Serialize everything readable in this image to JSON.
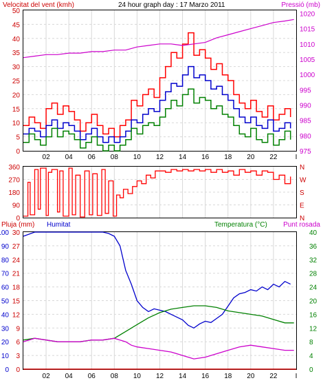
{
  "chart_data": [
    {
      "type": "line",
      "panel": "wind-pressure",
      "title": "24 hour graph day : 17 Marzo 2011",
      "left_label": "Velocitat del vent (kmh)",
      "right_label": "Pressió (mb)",
      "x_ticks": [
        "02",
        "04",
        "06",
        "08",
        "10",
        "12",
        "14",
        "16",
        "18",
        "20",
        "22",
        "I"
      ],
      "left_ticks": [
        "0",
        "5",
        "10",
        "15",
        "20",
        "25",
        "30",
        "35",
        "40",
        "45",
        "50"
      ],
      "right_ticks": [
        "975",
        "980",
        "985",
        "990",
        "995",
        "1000",
        "1005",
        "1010",
        "1015",
        "1020"
      ],
      "left_ylim": [
        0,
        50
      ],
      "right_ylim": [
        975,
        1021
      ],
      "x_range": [
        0,
        24
      ],
      "grid": true,
      "colors": {
        "gust": "#ff0000",
        "speed": "#0000cc",
        "minimum": "#008000",
        "pressure": "#cc00cc",
        "left_axis": "#cc0000",
        "right_axis": "#cc00cc"
      },
      "series": [
        {
          "key": "gust",
          "axis": "left",
          "x": [
            0,
            0.5,
            1,
            1.5,
            2,
            2.5,
            3,
            3.5,
            4,
            4.5,
            5,
            5.5,
            6,
            6.5,
            7,
            7.5,
            8,
            8.5,
            9,
            9.5,
            10,
            10.5,
            11,
            11.5,
            12,
            12.5,
            13,
            13.5,
            14,
            14.5,
            15,
            15.5,
            16,
            16.5,
            17,
            17.5,
            18,
            18.5,
            19,
            19.5,
            20,
            20.5,
            21,
            21.5,
            22,
            22.5,
            23,
            23.5
          ],
          "y": [
            9,
            12,
            10,
            8,
            15,
            17,
            13,
            16,
            14,
            11,
            7,
            10,
            13,
            9,
            6,
            8,
            5,
            9,
            11,
            18,
            16,
            20,
            22,
            19,
            26,
            30,
            35,
            33,
            38,
            42,
            34,
            36,
            33,
            29,
            31,
            27,
            25,
            20,
            17,
            15,
            18,
            14,
            12,
            16,
            11,
            13,
            15,
            12
          ]
        },
        {
          "key": "speed",
          "axis": "left",
          "x": [
            0,
            0.5,
            1,
            1.5,
            2,
            2.5,
            3,
            3.5,
            4,
            4.5,
            5,
            5.5,
            6,
            6.5,
            7,
            7.5,
            8,
            8.5,
            9,
            9.5,
            10,
            10.5,
            11,
            11.5,
            12,
            12.5,
            13,
            13.5,
            14,
            14.5,
            15,
            15.5,
            16,
            16.5,
            17,
            17.5,
            18,
            18.5,
            19,
            19.5,
            20,
            20.5,
            21,
            21.5,
            22,
            22.5,
            23,
            23.5
          ],
          "y": [
            6,
            8,
            7,
            5,
            9,
            11,
            8,
            10,
            9,
            7,
            4,
            6,
            8,
            5,
            3,
            5,
            3,
            5,
            7,
            11,
            10,
            13,
            15,
            14,
            18,
            21,
            24,
            23,
            27,
            30,
            26,
            27,
            25,
            22,
            23,
            20,
            18,
            15,
            12,
            10,
            12,
            9,
            8,
            11,
            7,
            8,
            10,
            8
          ]
        },
        {
          "key": "minimum",
          "axis": "left",
          "x": [
            0,
            0.5,
            1,
            1.5,
            2,
            2.5,
            3,
            3.5,
            4,
            4.5,
            5,
            5.5,
            6,
            6.5,
            7,
            7.5,
            8,
            8.5,
            9,
            9.5,
            10,
            10.5,
            11,
            11.5,
            12,
            12.5,
            13,
            13.5,
            14,
            14.5,
            15,
            15.5,
            16,
            16.5,
            17,
            17.5,
            18,
            18.5,
            19,
            19.5,
            20,
            20.5,
            21,
            21.5,
            22,
            22.5,
            23,
            23.5
          ],
          "y": [
            3,
            6,
            4,
            2,
            5,
            8,
            5,
            7,
            6,
            4,
            1,
            3,
            5,
            2,
            0,
            2,
            0,
            2,
            4,
            8,
            6,
            9,
            10,
            9,
            12,
            15,
            18,
            16,
            20,
            22,
            17,
            19,
            18,
            15,
            16,
            13,
            12,
            9,
            6,
            5,
            8,
            4,
            3,
            6,
            2,
            4,
            7,
            4
          ]
        },
        {
          "key": "pressure",
          "axis": "right",
          "x": [
            0,
            1,
            2,
            3,
            4,
            5,
            6,
            7,
            8,
            9,
            10,
            11,
            12,
            13,
            14,
            15,
            16,
            17,
            18,
            19,
            20,
            21,
            22,
            23,
            23.8
          ],
          "y": [
            1005.5,
            1006,
            1006.5,
            1006.5,
            1007,
            1007,
            1007.5,
            1007.5,
            1008,
            1008,
            1009,
            1009.5,
            1010,
            1010,
            1009.5,
            1010,
            1010.5,
            1012,
            1013,
            1014,
            1015,
            1016,
            1017,
            1017.5,
            1018
          ]
        }
      ]
    },
    {
      "type": "line",
      "panel": "wind-direction",
      "y_ticks_left": [
        "0",
        "90",
        "180",
        "270",
        "360"
      ],
      "y_ticks_right": [
        "N",
        "E",
        "S",
        "W",
        "N"
      ],
      "ylim": [
        0,
        360
      ],
      "x_range": [
        0,
        24
      ],
      "grid": true,
      "colors": {
        "direction": "#ff0000"
      },
      "series": [
        {
          "key": "direction",
          "x": [
            0,
            0.4,
            0.6,
            1,
            1.3,
            1.5,
            2,
            2.2,
            2.5,
            3,
            3.2,
            3.5,
            4,
            4.3,
            4.6,
            5,
            5.4,
            5.8,
            6.1,
            6.5,
            6.9,
            7.2,
            7.5,
            7.9,
            8.2,
            8.5,
            8.8,
            9.2,
            9.6,
            10,
            10.4,
            10.8,
            11.2,
            11.6,
            12,
            12.5,
            13,
            13.5,
            14,
            14.5,
            15,
            15.5,
            16,
            16.5,
            17,
            17.5,
            18,
            18.5,
            19,
            19.5,
            20,
            20.5,
            21,
            21.5,
            22,
            22.5,
            23,
            23.5
          ],
          "y": [
            10,
            250,
            20,
            340,
            60,
            350,
            15,
            320,
            340,
            40,
            330,
            10,
            350,
            20,
            300,
            5,
            330,
            20,
            310,
            15,
            340,
            30,
            260,
            10,
            160,
            140,
            200,
            170,
            220,
            260,
            240,
            300,
            280,
            330,
            330,
            320,
            340,
            330,
            340,
            330,
            340,
            330,
            340,
            320,
            340,
            320,
            330,
            300,
            340,
            320,
            330,
            300,
            330,
            320,
            270,
            300,
            240,
            290
          ]
        }
      ]
    },
    {
      "type": "line",
      "panel": "humidity-temperature",
      "labels": {
        "rain": "Pluja (mm)",
        "humidity": "Humitat",
        "temperature": "Temperatura (°C)",
        "dew": "Punt rosada"
      },
      "x_ticks": [
        "02",
        "04",
        "06",
        "08",
        "10",
        "12",
        "14",
        "16",
        "18",
        "20",
        "22",
        "I"
      ],
      "rain_ticks": [
        "0",
        "3",
        "6",
        "9",
        "12",
        "15",
        "18",
        "21",
        "24",
        "27",
        "30"
      ],
      "humidity_ticks": [
        "0",
        "10",
        "20",
        "30",
        "40",
        "50",
        "60",
        "70",
        "80",
        "90",
        "100"
      ],
      "temp_ticks": [
        "0",
        "4",
        "8",
        "12",
        "16",
        "20",
        "24",
        "28",
        "32",
        "36",
        "40"
      ],
      "rain_ylim": [
        0,
        30
      ],
      "humidity_ylim": [
        0,
        100
      ],
      "temp_ylim": [
        0,
        40
      ],
      "x_range": [
        0,
        24
      ],
      "grid": true,
      "colors": {
        "rain": "#cc0000",
        "humidity": "#0000cc",
        "temperature": "#008000",
        "dew": "#cc00cc",
        "rain_axis": "#cc0000",
        "humidity_axis": "#0000cc",
        "temp_axis": "#008000"
      },
      "series": [
        {
          "key": "humidity",
          "axis": "humidity",
          "x": [
            0,
            1,
            2,
            3,
            4,
            5,
            6,
            7,
            7.5,
            8,
            8.5,
            9,
            9.5,
            10,
            10.5,
            11,
            11.5,
            12,
            12.5,
            13,
            13.5,
            14,
            14.5,
            15,
            15.5,
            16,
            16.5,
            17,
            17.5,
            18,
            18.5,
            19,
            19.5,
            20,
            20.5,
            21,
            21.5,
            22,
            22.5,
            23,
            23.5
          ],
          "y": [
            97,
            100,
            100,
            100,
            100,
            100,
            100,
            100,
            99,
            97,
            90,
            72,
            62,
            50,
            45,
            42,
            44,
            43,
            42,
            40,
            38,
            36,
            32,
            30,
            33,
            35,
            34,
            37,
            40,
            46,
            52,
            55,
            56,
            58,
            57,
            60,
            58,
            62,
            60,
            64,
            62
          ]
        },
        {
          "key": "temperature",
          "axis": "temp",
          "x": [
            0,
            1,
            2,
            3,
            4,
            5,
            6,
            7,
            8,
            9,
            10,
            11,
            12,
            13,
            14,
            15,
            16,
            17,
            18,
            19,
            20,
            21,
            22,
            23,
            23.8
          ],
          "y": [
            8.5,
            9,
            8.5,
            8,
            8,
            8,
            8.5,
            8.5,
            9,
            11,
            13,
            15,
            16.5,
            17.5,
            18,
            18.5,
            18.5,
            18,
            17,
            16.5,
            16,
            15.5,
            14.5,
            13.5,
            13.5
          ]
        },
        {
          "key": "dew",
          "axis": "temp",
          "x": [
            0,
            1,
            2,
            3,
            4,
            5,
            6,
            7,
            8,
            8.5,
            9,
            9.5,
            10,
            11,
            12,
            13,
            14,
            14.5,
            15,
            16,
            17,
            18,
            19,
            20,
            21,
            22,
            23,
            23.8
          ],
          "y": [
            8,
            9,
            8.5,
            8,
            8,
            8,
            8.5,
            8.5,
            9,
            8.5,
            8,
            7,
            6.5,
            6,
            5.5,
            5,
            4,
            3.5,
            3,
            3.5,
            4.5,
            5.5,
            6.5,
            7,
            6.5,
            6,
            5.5,
            5.5
          ]
        },
        {
          "key": "rain",
          "axis": "rain",
          "x": [
            0,
            24
          ],
          "y": [
            0,
            0
          ]
        }
      ]
    }
  ]
}
